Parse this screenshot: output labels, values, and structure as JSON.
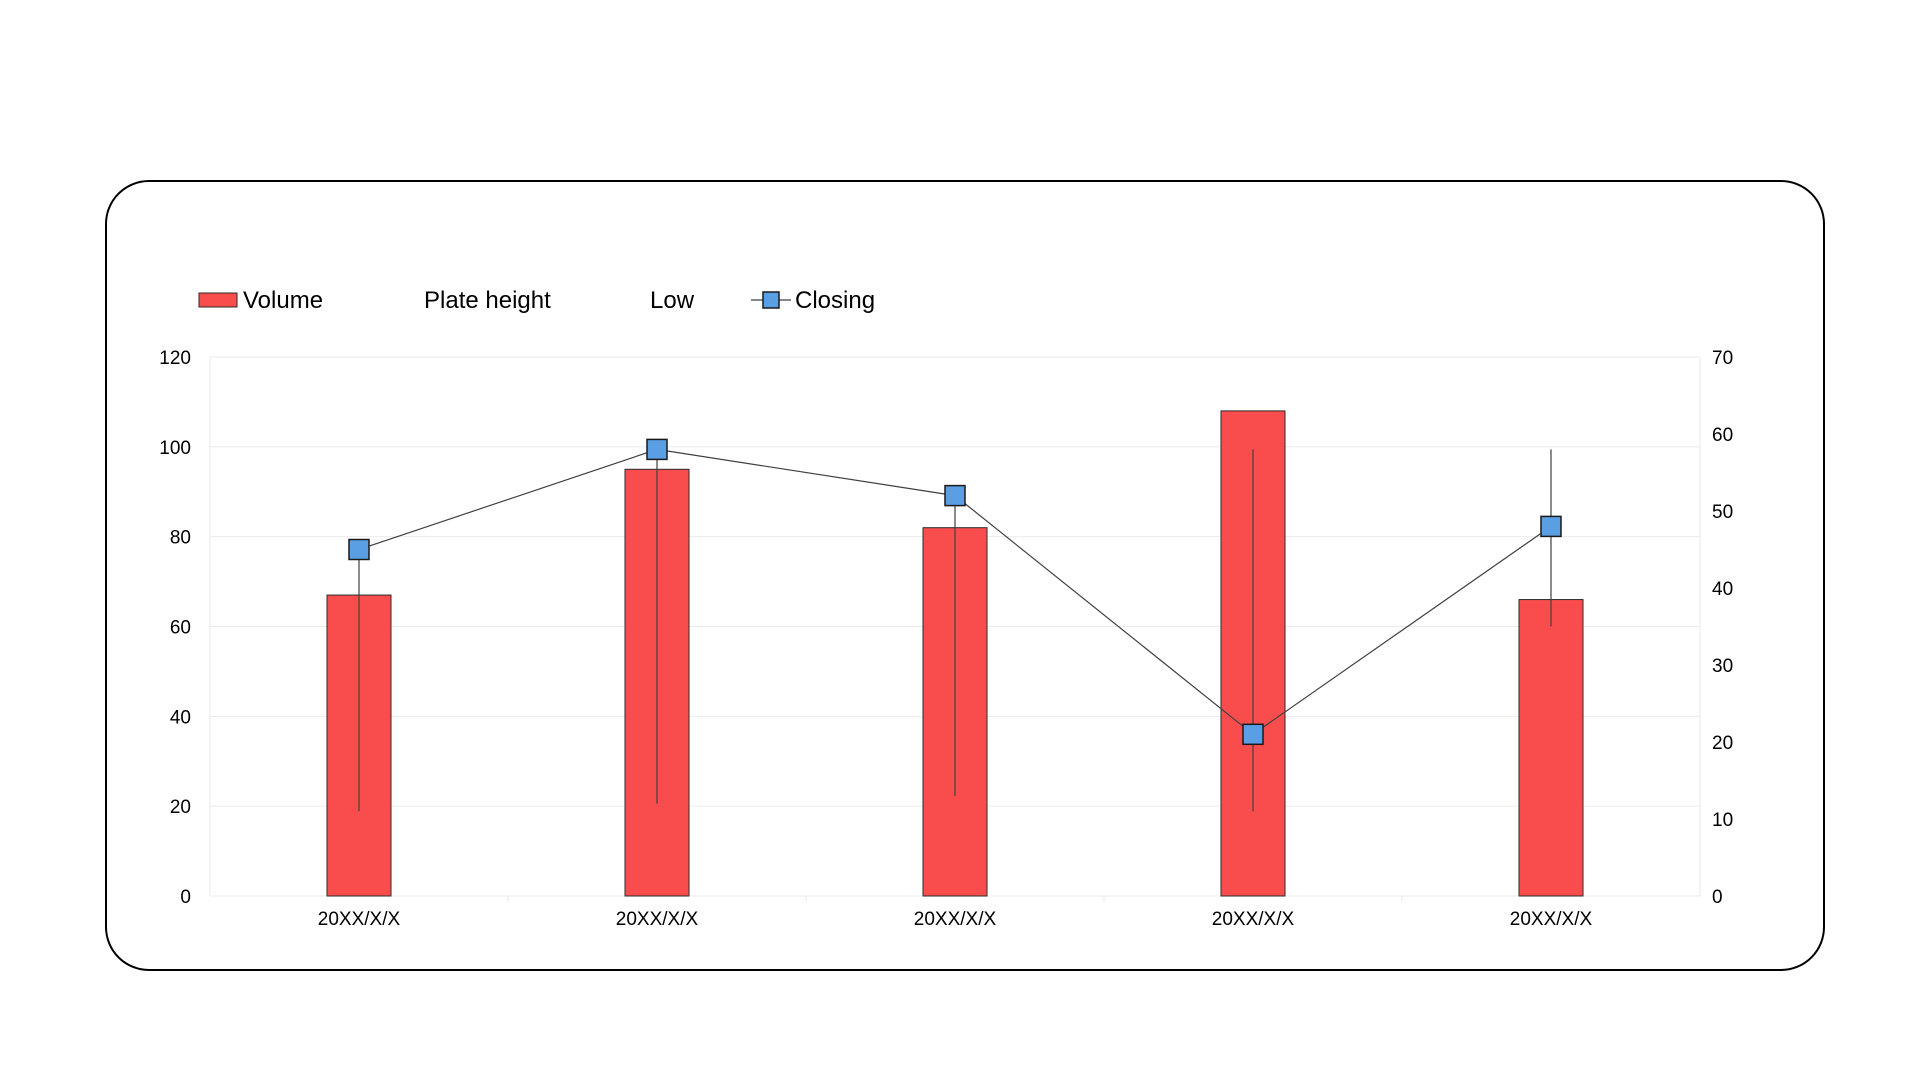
{
  "chart_data": {
    "type": "bar",
    "categories": [
      "20XX/X/X",
      "20XX/X/X",
      "20XX/X/X",
      "20XX/X/X",
      "20XX/X/X"
    ],
    "series": [
      {
        "name": "Volume",
        "type": "bar",
        "axis": "left",
        "values": [
          67,
          95,
          82,
          108,
          66
        ]
      },
      {
        "name": "Plate height",
        "type": "high",
        "axis": "right",
        "values": [
          45,
          58,
          52,
          58,
          58
        ]
      },
      {
        "name": "Low",
        "type": "low",
        "axis": "right",
        "values": [
          11,
          12,
          13,
          11,
          35
        ]
      },
      {
        "name": "Closing",
        "type": "line",
        "axis": "right",
        "values": [
          45,
          58,
          52,
          21,
          48
        ]
      }
    ],
    "y_left": {
      "ylim": [
        0,
        120
      ],
      "ticks": [
        "0",
        "20",
        "40",
        "60",
        "80",
        "100",
        "120"
      ]
    },
    "y_right": {
      "ylim": [
        0,
        70
      ],
      "ticks": [
        "0",
        "10",
        "20",
        "30",
        "40",
        "50",
        "60",
        "70"
      ]
    },
    "legend": {
      "position": "top-left"
    },
    "grid": true,
    "colors": {
      "bar": "#F94D4D",
      "marker": "#5A9FE3",
      "line": "#404040",
      "grid": "#EBEBEB"
    }
  }
}
